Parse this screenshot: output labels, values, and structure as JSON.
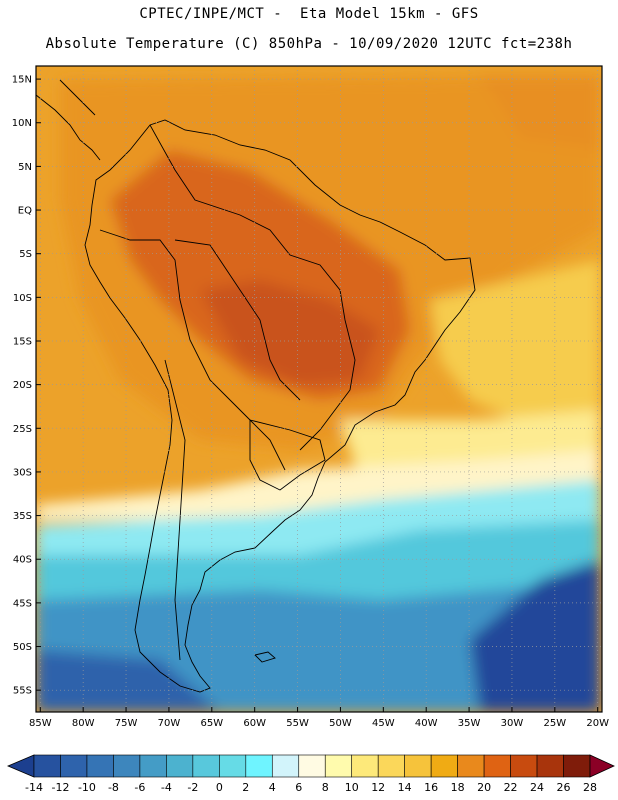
{
  "header": {
    "line1": "CPTEC/INPE/MCT -  Eta Model 15km - GFS",
    "line2": "Absolute Temperature (C) 850hPa - 10/09/2020 12UTC fct=238h"
  },
  "map": {
    "lat_labels": [
      "15N",
      "10N",
      "5N",
      "EQ",
      "5S",
      "10S",
      "15S",
      "20S",
      "25S",
      "30S",
      "35S",
      "40S",
      "45S",
      "50S",
      "55S"
    ],
    "lat_values": [
      15,
      10,
      5,
      0,
      -5,
      -10,
      -15,
      -20,
      -25,
      -30,
      -35,
      -40,
      -45,
      -50,
      -55
    ],
    "lon_labels": [
      "85W",
      "80W",
      "75W",
      "70W",
      "65W",
      "60W",
      "55W",
      "50W",
      "45W",
      "40W",
      "35W",
      "30W",
      "25W",
      "20W"
    ],
    "lon_values": [
      -85,
      -80,
      -75,
      -70,
      -65,
      -60,
      -55,
      -50,
      -45,
      -40,
      -35,
      -30,
      -25,
      -20
    ],
    "extent": {
      "lon_min": -85.5,
      "lon_max": -19.5,
      "lat_max": 16.5,
      "lat_min": -57.5
    }
  },
  "colorbar": {
    "labels": [
      "-14",
      "-12",
      "-10",
      "-8",
      "-6",
      "-4",
      "-2",
      "0",
      "2",
      "4",
      "6",
      "8",
      "10",
      "12",
      "14",
      "16",
      "18",
      "20",
      "22",
      "24",
      "26",
      "28"
    ],
    "colors": [
      "#1c3f8f",
      "#26529f",
      "#2e63ac",
      "#3574b5",
      "#3d86bd",
      "#449cc6",
      "#4cb2cf",
      "#58c8dc",
      "#66dbe6",
      "#6ff4ff",
      "#d2f4fb",
      "#fffbe3",
      "#fffbad",
      "#fde97a",
      "#fbd75a",
      "#f6c33b",
      "#f0ab14",
      "#e9891c",
      "#df6313",
      "#c84b0f",
      "#a8340c",
      "#7f1c0a",
      "#8b0026"
    ]
  },
  "colors": {
    "hot": "#d9661a",
    "warm": "#eda828",
    "mild": "#f6cc4e",
    "cool": "#fff4b9",
    "cold_light": "#7ee6f0",
    "cold": "#3bb6d4",
    "colder": "#3f8ec4",
    "coldest": "#2a5aa5"
  }
}
